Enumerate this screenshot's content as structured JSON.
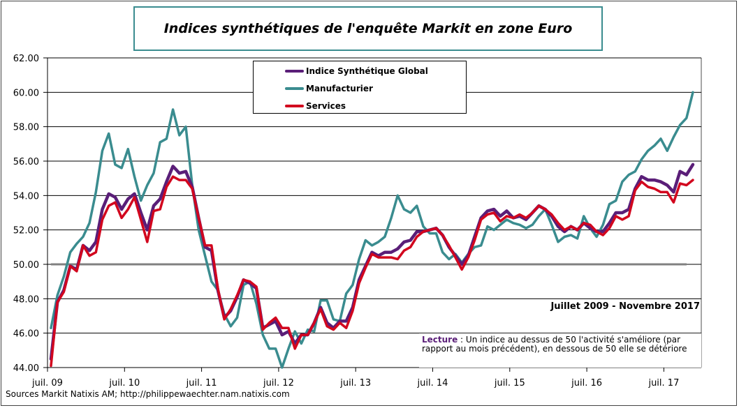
{
  "title": "Indices synthétiques de l'enquête Markit en zone Euro",
  "period": "Juillet  2009 - Novembre 2017",
  "lecture": {
    "label": "Lecture",
    "text": " : Un indice au dessus de 50 l'activité s'améliore (par rapport au mois précédent), en dessous de 50 elle se détériore"
  },
  "sources": "Sources Markit Natixis AM;  http://philippewaechter.nam.natixis.com",
  "chart_data": {
    "type": "line",
    "title": "Indices synthétiques de l'enquête Markit en zone Euro",
    "x_start": "juil. 2009",
    "x_end": "nov. 2017",
    "frequency": "monthly",
    "xticks": [
      "juil. 09",
      "juil. 10",
      "juil. 11",
      "juil. 12",
      "juil. 13",
      "juil. 14",
      "juil. 15",
      "juil. 16",
      "juil. 17"
    ],
    "yticks": [
      "44.00",
      "46.00",
      "48.00",
      "50.00",
      "52.00",
      "54.00",
      "56.00",
      "58.00",
      "60.00",
      "62.00"
    ],
    "ylim": [
      44,
      62
    ],
    "grid": true,
    "reference_line": 50,
    "legend_position": "top-center",
    "series": [
      {
        "name": "Indice Synthétique Global",
        "color": "#5a1e78",
        "values": [
          44.5,
          47.8,
          48.5,
          49.9,
          49.7,
          51.1,
          50.8,
          51.3,
          53.2,
          54.1,
          53.9,
          53.2,
          53.8,
          54.1,
          53.0,
          52.0,
          53.4,
          53.8,
          54.8,
          55.7,
          55.3,
          55.4,
          54.5,
          52.7,
          51.0,
          50.8,
          48.5,
          46.9,
          47.3,
          48.1,
          49.1,
          48.9,
          48.6,
          46.3,
          46.5,
          46.7,
          45.9,
          46.1,
          45.4,
          45.9,
          45.9,
          46.6,
          47.5,
          46.6,
          46.3,
          46.7,
          46.7,
          47.5,
          49.1,
          49.9,
          50.7,
          50.5,
          50.7,
          50.7,
          50.9,
          51.3,
          51.4,
          51.9,
          51.9,
          52.0,
          52.1,
          51.7,
          51.0,
          50.5,
          50.0,
          50.5,
          51.6,
          52.7,
          53.1,
          53.2,
          52.8,
          53.1,
          52.7,
          52.8,
          52.6,
          53.0,
          53.4,
          53.2,
          52.8,
          52.2,
          51.9,
          52.2,
          52.0,
          52.4,
          52.1,
          51.9,
          51.9,
          52.4,
          53.0,
          53.0,
          53.2,
          54.4,
          55.1,
          54.9,
          54.9,
          54.8,
          54.6,
          54.2,
          55.4,
          55.2,
          55.8
        ]
      },
      {
        "name": "Manufacturier",
        "color": "#3a8c8f",
        "values": [
          46.3,
          48.2,
          49.3,
          50.7,
          51.2,
          51.6,
          52.4,
          54.2,
          56.6,
          57.6,
          55.8,
          55.6,
          56.7,
          55.1,
          53.7,
          54.6,
          55.3,
          57.1,
          57.3,
          59.0,
          57.5,
          58.0,
          54.6,
          52.0,
          50.5,
          49.0,
          48.5,
          47.1,
          46.4,
          46.9,
          48.8,
          49.0,
          47.7,
          45.9,
          45.1,
          45.1,
          44.0,
          45.1,
          46.1,
          45.4,
          46.2,
          46.1,
          47.9,
          47.9,
          46.8,
          46.7,
          48.3,
          48.8,
          50.3,
          51.4,
          51.1,
          51.3,
          51.6,
          52.7,
          54.0,
          53.2,
          53.0,
          53.4,
          52.2,
          51.8,
          51.8,
          50.7,
          50.3,
          50.6,
          50.1,
          50.6,
          51.0,
          51.1,
          52.2,
          52.0,
          52.3,
          52.6,
          52.4,
          52.3,
          52.1,
          52.3,
          52.8,
          53.2,
          52.3,
          51.3,
          51.6,
          51.7,
          51.5,
          52.8,
          52.1,
          51.6,
          52.3,
          53.5,
          53.7,
          54.8,
          55.2,
          55.4,
          56.1,
          56.6,
          56.9,
          57.3,
          56.6,
          57.4,
          58.1,
          58.5,
          60.0
        ]
      },
      {
        "name": "Services",
        "color": "#d2061e",
        "values": [
          44.1,
          47.8,
          48.4,
          49.9,
          49.6,
          51.1,
          50.5,
          50.7,
          52.6,
          53.4,
          53.6,
          52.7,
          53.2,
          53.9,
          52.6,
          51.3,
          53.1,
          53.2,
          54.5,
          55.1,
          54.9,
          54.9,
          54.4,
          52.7,
          51.1,
          51.1,
          48.6,
          46.8,
          47.4,
          48.2,
          49.1,
          49.0,
          48.7,
          46.2,
          46.6,
          46.9,
          46.3,
          46.3,
          45.1,
          45.9,
          45.9,
          46.6,
          47.4,
          46.4,
          46.2,
          46.6,
          46.3,
          47.3,
          48.9,
          49.8,
          50.6,
          50.4,
          50.4,
          50.4,
          50.3,
          50.8,
          51.0,
          51.6,
          51.9,
          52.0,
          52.1,
          51.7,
          51.1,
          50.4,
          49.7,
          50.4,
          51.4,
          52.6,
          52.9,
          53.0,
          52.5,
          52.8,
          52.7,
          52.9,
          52.7,
          53.0,
          53.4,
          53.2,
          52.9,
          52.4,
          52.0,
          52.2,
          52.0,
          52.4,
          52.3,
          51.9,
          51.7,
          52.1,
          52.8,
          52.6,
          52.8,
          54.3,
          54.8,
          54.5,
          54.4,
          54.2,
          54.2,
          53.6,
          54.7,
          54.6,
          54.9
        ]
      }
    ]
  }
}
